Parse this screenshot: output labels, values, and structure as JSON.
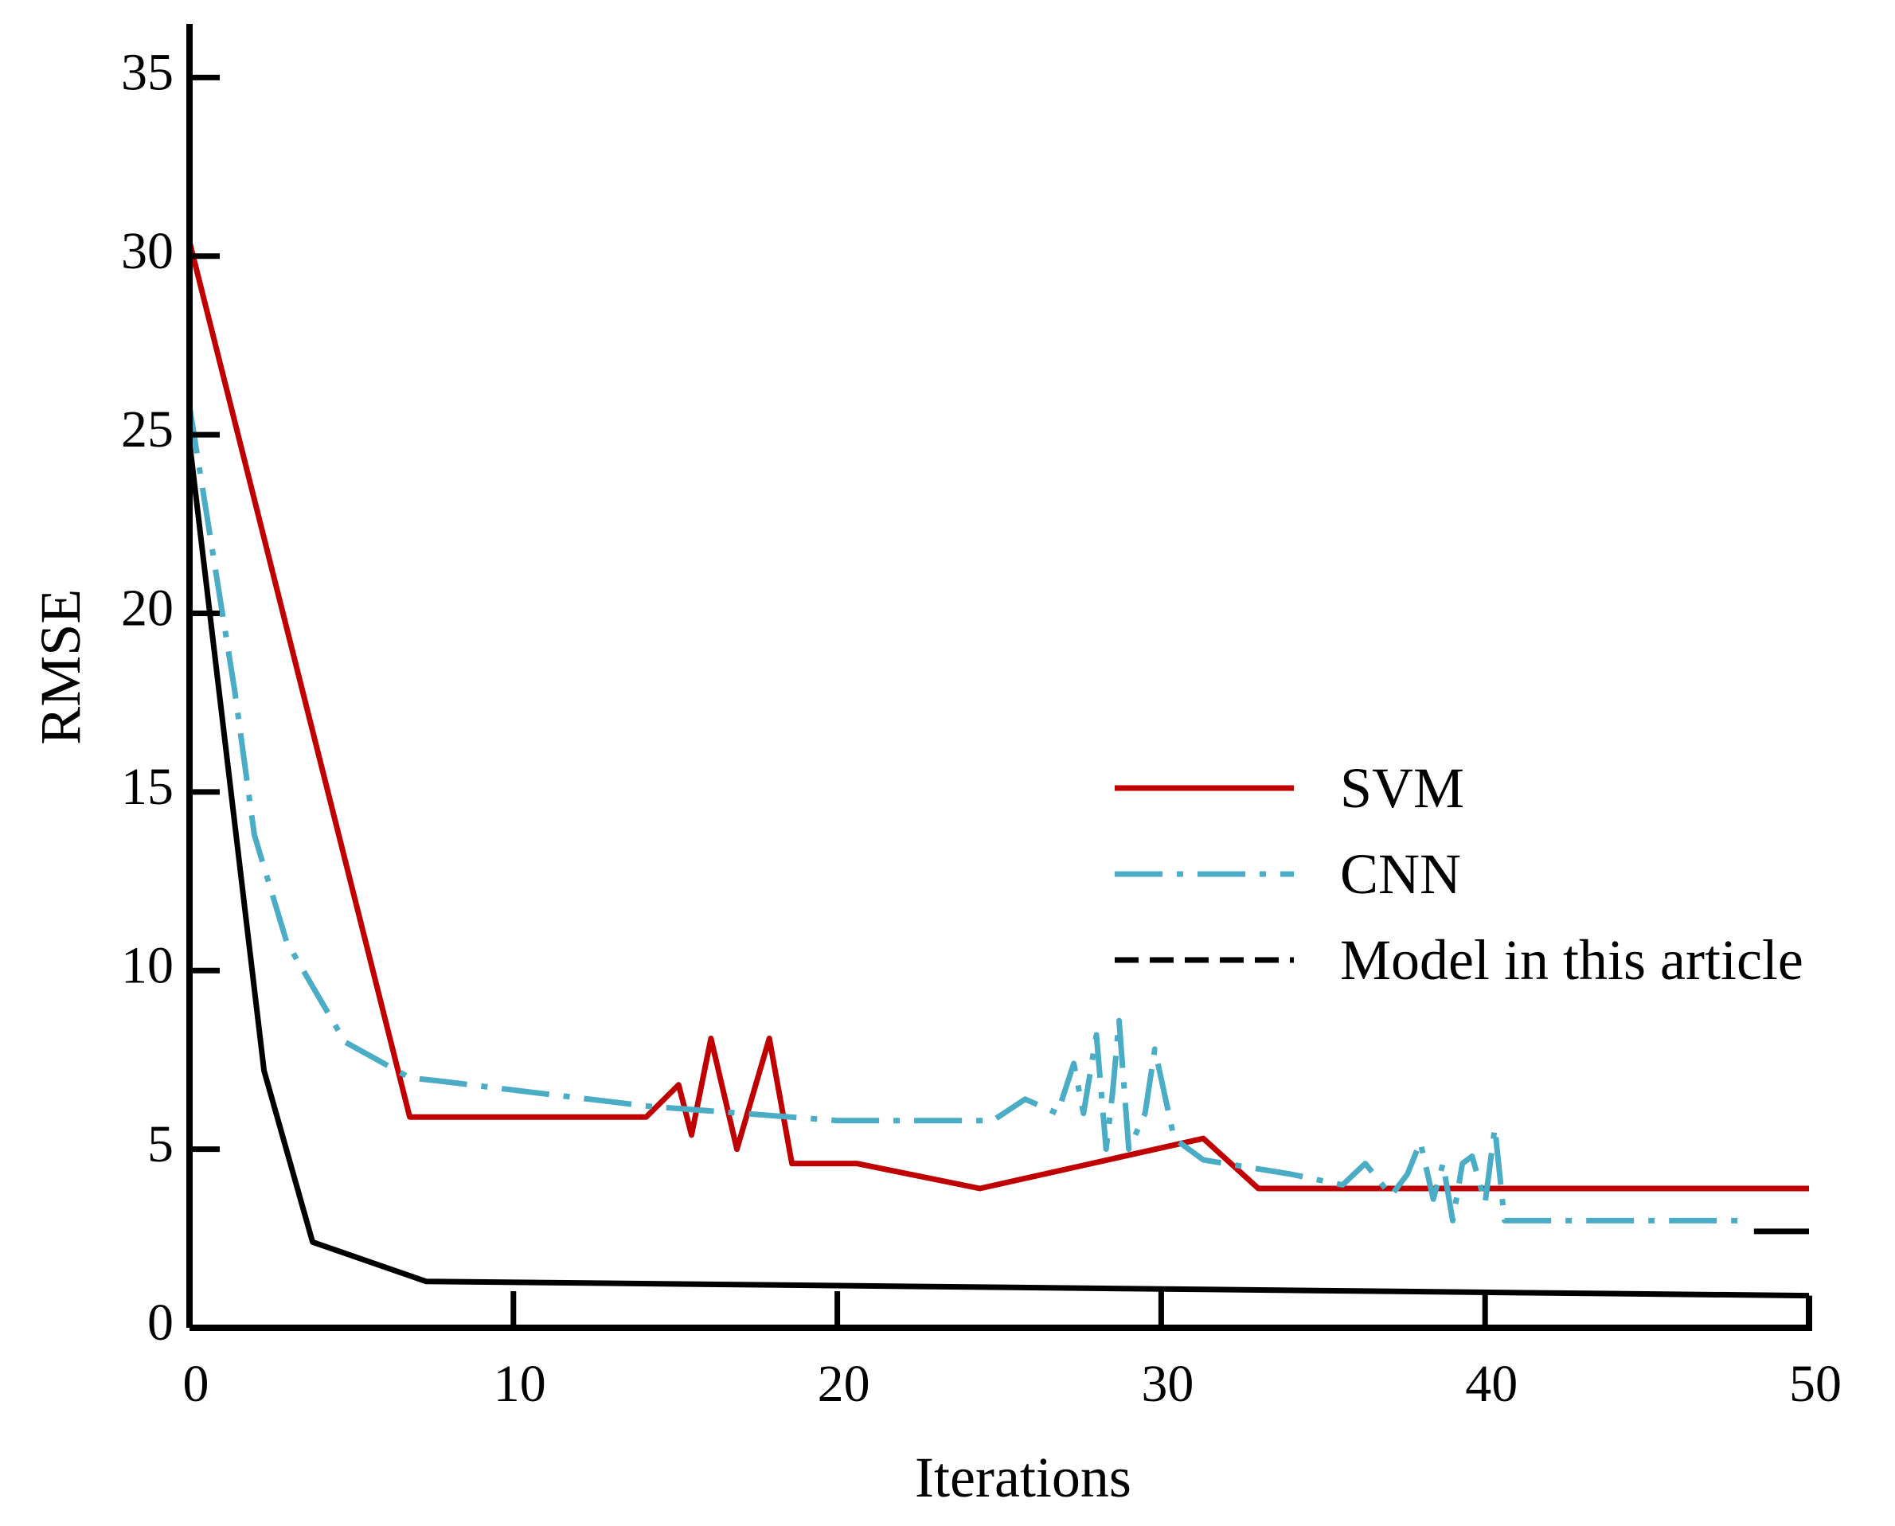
{
  "chart_data": {
    "type": "line",
    "title": "",
    "xlabel": "Iterations",
    "ylabel": "RMSE",
    "xlim": [
      0,
      50
    ],
    "ylim": [
      0,
      36.5
    ],
    "xticks": [
      0,
      10,
      20,
      30,
      40,
      50
    ],
    "yticks": [
      0,
      5,
      10,
      15,
      20,
      25,
      30,
      35
    ],
    "xtick_labels": [
      "0",
      "10",
      "20",
      "30",
      "40",
      "50"
    ],
    "ytick_labels": [
      "0",
      "5",
      "10",
      "15",
      "20",
      "25",
      "30",
      "35"
    ],
    "grid": false,
    "legend_position": "right",
    "series": [
      {
        "name": "SVM",
        "color": "#c00000",
        "style": "solid",
        "points": [
          [
            0,
            30.4
          ],
          [
            6.8,
            5.9
          ],
          [
            14.1,
            5.9
          ],
          [
            15.1,
            6.8
          ],
          [
            15.5,
            5.4
          ],
          [
            16.1,
            8.1
          ],
          [
            16.9,
            5.0
          ],
          [
            17.9,
            8.1
          ],
          [
            18.6,
            4.6
          ],
          [
            20.6,
            4.6
          ],
          [
            24.4,
            3.9
          ],
          [
            31.3,
            5.3
          ],
          [
            33.0,
            3.9
          ],
          [
            50,
            3.9
          ]
        ]
      },
      {
        "name": "CNN",
        "color": "#4bacc6",
        "style": "dashdot",
        "points": [
          [
            0,
            25.8
          ],
          [
            1.4,
            17.8
          ],
          [
            2.0,
            13.8
          ],
          [
            3.0,
            10.8
          ],
          [
            4.8,
            8.0
          ],
          [
            6.8,
            7.0
          ],
          [
            7.8,
            6.9
          ],
          [
            10.5,
            6.6
          ],
          [
            14.2,
            6.2
          ],
          [
            20,
            5.8
          ],
          [
            24.8,
            5.8
          ],
          [
            25.8,
            6.4
          ],
          [
            26.8,
            6.0
          ],
          [
            27.3,
            7.4
          ],
          [
            27.6,
            6.0
          ],
          [
            28.0,
            8.2
          ],
          [
            28.3,
            5.0
          ],
          [
            28.5,
            6.6
          ],
          [
            28.7,
            8.6
          ],
          [
            29.0,
            5.0
          ],
          [
            29.5,
            6.0
          ],
          [
            29.8,
            7.8
          ],
          [
            30.4,
            5.3
          ],
          [
            31.3,
            4.7
          ],
          [
            34.0,
            4.3
          ],
          [
            35.6,
            4.0
          ],
          [
            36.3,
            4.6
          ],
          [
            37.1,
            3.7
          ],
          [
            37.6,
            4.3
          ],
          [
            38.0,
            5.2
          ],
          [
            38.4,
            3.6
          ],
          [
            38.7,
            4.6
          ],
          [
            39.0,
            3.0
          ],
          [
            39.3,
            4.6
          ],
          [
            39.6,
            4.8
          ],
          [
            40.0,
            3.5
          ],
          [
            40.3,
            5.6
          ],
          [
            40.6,
            3.0
          ],
          [
            48,
            3.0
          ]
        ]
      },
      {
        "name": "Model in this article",
        "color": "#000000",
        "style": "solid",
        "points": [
          [
            0,
            24.8
          ],
          [
            2.3,
            7.2
          ],
          [
            3.8,
            2.4
          ],
          [
            7.3,
            1.3
          ],
          [
            50,
            0.9
          ]
        ]
      }
    ],
    "annotations": [
      {
        "type": "segment",
        "color": "#000000",
        "from": [
          48.3,
          2.7
        ],
        "to": [
          50,
          2.7
        ]
      }
    ]
  }
}
